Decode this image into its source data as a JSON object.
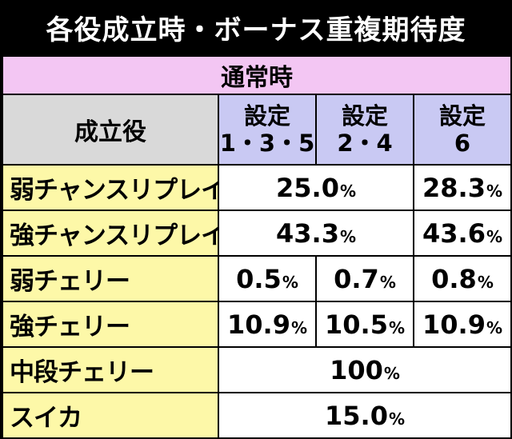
{
  "title": "各役成立時・ボーナス重複期待度",
  "condition": "通常時",
  "header": {
    "role_label": "成立役",
    "settings": [
      {
        "line1": "設定",
        "line2": "1・3・5"
      },
      {
        "line1": "設定",
        "line2": "2・4"
      },
      {
        "line1": "設定",
        "line2": "6"
      }
    ]
  },
  "rows": [
    {
      "role": "弱チャンスリプレイ",
      "cells": [
        {
          "value": "25.0",
          "unit": "%"
        },
        {
          "value": "28.3",
          "unit": "%"
        }
      ]
    },
    {
      "role": "強チャンスリプレイ",
      "cells": [
        {
          "value": "43.3",
          "unit": "%"
        },
        {
          "value": "43.6",
          "unit": "%"
        }
      ]
    },
    {
      "role": "弱チェリー",
      "cells": [
        {
          "value": "0.5",
          "unit": "%"
        },
        {
          "value": "0.7",
          "unit": "%"
        },
        {
          "value": "0.8",
          "unit": "%"
        }
      ]
    },
    {
      "role": "強チェリー",
      "cells": [
        {
          "value": "10.9",
          "unit": "%"
        },
        {
          "value": "10.5",
          "unit": "%"
        },
        {
          "value": "10.9",
          "unit": "%"
        }
      ]
    },
    {
      "role": "中段チェリー",
      "cells": [
        {
          "value": "100",
          "unit": "%"
        }
      ]
    },
    {
      "role": "スイカ",
      "cells": [
        {
          "value": "15.0",
          "unit": "%"
        }
      ]
    }
  ],
  "colors": {
    "title_bg": "#000000",
    "condition_bg": "#f3c6f3",
    "label_bg": "#d9d9d9",
    "setting_bg": "#c9c9f3",
    "role_bg": "#fdf8a8",
    "value_bg": "#ffffff"
  }
}
